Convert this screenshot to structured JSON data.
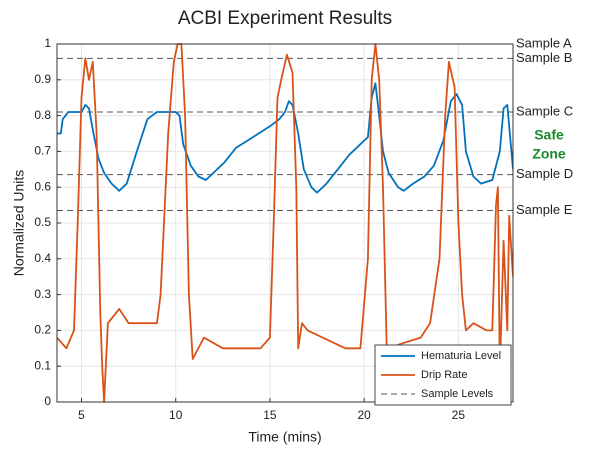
{
  "chart_data": {
    "type": "line",
    "title": "ACBI Experiment Results",
    "x_label": "Time (mins)",
    "y_label": "Normalized Units",
    "xlim": [
      3.7,
      27.9
    ],
    "ylim": [
      0,
      1
    ],
    "xticks": [
      5,
      10,
      15,
      20,
      25
    ],
    "yticks": [
      0,
      0.1,
      0.2,
      0.3,
      0.4,
      0.5,
      0.6,
      0.7,
      0.8,
      0.9,
      1
    ],
    "grid": true,
    "legend": "lower right",
    "series": [
      {
        "name": "Hematuria Level",
        "color": "#0072bd",
        "x": [
          3.7,
          3.9,
          4.0,
          4.3,
          5.0,
          5.2,
          5.4,
          5.6,
          5.9,
          6.2,
          6.6,
          7.0,
          7.4,
          8.0,
          8.5,
          9.0,
          10.0,
          10.2,
          10.4,
          10.8,
          11.2,
          11.6,
          12.0,
          12.6,
          13.2,
          13.8,
          14.4,
          15.0,
          15.5,
          15.8,
          16.0,
          16.2,
          16.5,
          16.8,
          17.2,
          17.5,
          18.0,
          18.6,
          19.2,
          19.8,
          20.2,
          20.4,
          20.6,
          20.8,
          21.0,
          21.3,
          21.8,
          22.1,
          22.6,
          23.2,
          23.7,
          24.2,
          24.6,
          24.9,
          25.2,
          25.4,
          25.8,
          26.2,
          26.8,
          27.2,
          27.4,
          27.6,
          27.9
        ],
        "values": [
          0.75,
          0.75,
          0.79,
          0.81,
          0.81,
          0.83,
          0.82,
          0.76,
          0.68,
          0.64,
          0.61,
          0.59,
          0.61,
          0.71,
          0.79,
          0.81,
          0.81,
          0.8,
          0.72,
          0.66,
          0.63,
          0.62,
          0.64,
          0.67,
          0.71,
          0.73,
          0.75,
          0.77,
          0.79,
          0.81,
          0.84,
          0.83,
          0.75,
          0.65,
          0.6,
          0.585,
          0.61,
          0.65,
          0.69,
          0.72,
          0.74,
          0.85,
          0.89,
          0.8,
          0.7,
          0.64,
          0.6,
          0.59,
          0.61,
          0.63,
          0.66,
          0.73,
          0.84,
          0.86,
          0.83,
          0.7,
          0.63,
          0.61,
          0.62,
          0.7,
          0.82,
          0.83,
          0.65
        ]
      },
      {
        "name": "Drip Rate",
        "color": "#d95319",
        "x": [
          3.7,
          4.2,
          4.6,
          4.8,
          5.0,
          5.2,
          5.4,
          5.6,
          5.8,
          6.0,
          6.1,
          6.2,
          6.4,
          7.0,
          7.5,
          9.0,
          9.2,
          9.6,
          9.9,
          10.1,
          10.3,
          10.5,
          10.7,
          10.9,
          11.5,
          12.5,
          13.0,
          14.5,
          15.0,
          15.2,
          15.4,
          15.6,
          15.9,
          16.2,
          16.4,
          16.5,
          16.7,
          17.0,
          19.0,
          19.8,
          20.2,
          20.4,
          20.6,
          20.8,
          21.0,
          21.2,
          21.8,
          23.0,
          23.5,
          24.0,
          24.3,
          24.5,
          24.8,
          25.0,
          25.2,
          25.4,
          25.8,
          26.5,
          26.8,
          27.0,
          27.1,
          27.2,
          27.4,
          27.6,
          27.7,
          27.9
        ],
        "values": [
          0.18,
          0.15,
          0.2,
          0.5,
          0.85,
          0.96,
          0.9,
          0.95,
          0.75,
          0.25,
          0.1,
          0.0,
          0.22,
          0.26,
          0.22,
          0.22,
          0.3,
          0.75,
          0.95,
          1.0,
          1.0,
          0.8,
          0.3,
          0.12,
          0.18,
          0.15,
          0.15,
          0.15,
          0.18,
          0.5,
          0.85,
          0.9,
          0.97,
          0.92,
          0.6,
          0.15,
          0.22,
          0.2,
          0.15,
          0.15,
          0.4,
          0.9,
          1.0,
          0.9,
          0.6,
          0.14,
          0.16,
          0.18,
          0.22,
          0.4,
          0.8,
          0.95,
          0.88,
          0.5,
          0.3,
          0.2,
          0.22,
          0.2,
          0.2,
          0.55,
          0.6,
          0.08,
          0.45,
          0.2,
          0.52,
          0.35
        ]
      }
    ],
    "sample_levels": {
      "name": "Sample Levels",
      "color": "#555555",
      "lines": [
        {
          "label": "Sample A",
          "value": 1.0
        },
        {
          "label": "Sample B",
          "value": 0.96
        },
        {
          "label": "Sample C",
          "value": 0.81
        },
        {
          "label": "Sample D",
          "value": 0.635
        },
        {
          "label": "Sample E",
          "value": 0.535
        }
      ]
    },
    "annotation": {
      "lines": [
        "Safe",
        "Zone"
      ],
      "color": "#1a8a2a"
    }
  }
}
